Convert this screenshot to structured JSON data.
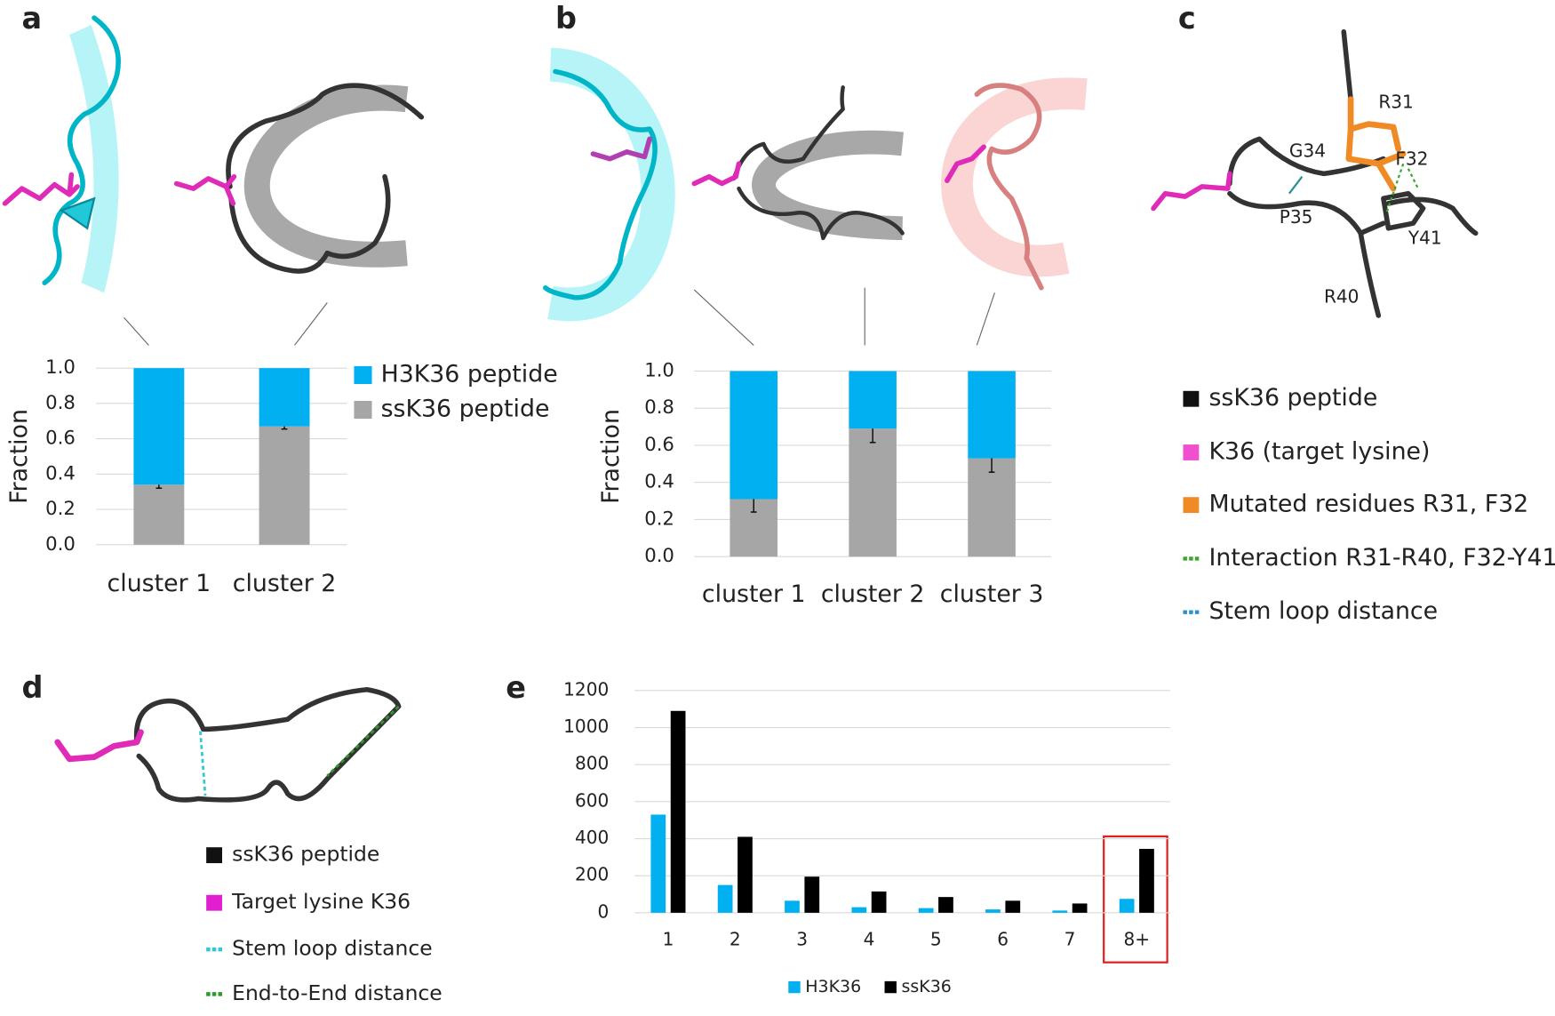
{
  "panel_labels": [
    "a",
    "b",
    "c",
    "d",
    "e"
  ],
  "chart_data": [
    {
      "type": "bar",
      "stacked": true,
      "y_label": "Fraction",
      "categories": [
        "cluster 1",
        "cluster 2"
      ],
      "series": [
        {
          "name": "ssK36 peptide",
          "color": "#a6a6a6",
          "values": [
            0.34,
            0.67
          ],
          "errors": [
            0.02,
            0.015
          ]
        },
        {
          "name": "H3K36 peptide",
          "color": "#00b0f0",
          "values": [
            0.66,
            0.33
          ]
        }
      ],
      "ylim": [
        0,
        1
      ],
      "yticks": [
        {
          "value": 0,
          "label": "0.0"
        },
        {
          "value": 0.2,
          "label": "0.2"
        },
        {
          "value": 0.4,
          "label": "0.4"
        },
        {
          "value": 0.6,
          "label": "0.6"
        },
        {
          "value": 0.8,
          "label": "0.8"
        },
        {
          "value": 1,
          "label": "1.0"
        }
      ],
      "grid": true
    },
    {
      "type": "bar",
      "stacked": true,
      "y_label": "Fraction",
      "categories": [
        "cluster 1",
        "cluster 2",
        "cluster 3"
      ],
      "series": [
        {
          "color": "#a6a6a6",
          "values": [
            0.31,
            0.69,
            0.53
          ],
          "errors": [
            0.07,
            0.075,
            0.075
          ]
        },
        {
          "color": "#00b0f0",
          "values": [
            0.69,
            0.31,
            0.47
          ]
        }
      ],
      "ylim": [
        0,
        1
      ],
      "yticks": [
        {
          "value": 0,
          "label": "0.0"
        },
        {
          "value": 0.2,
          "label": "0.2"
        },
        {
          "value": 0.4,
          "label": "0.4"
        },
        {
          "value": 0.6,
          "label": "0.6"
        },
        {
          "value": 0.8,
          "label": "0.8"
        },
        {
          "value": 1,
          "label": "1.0"
        }
      ],
      "grid": true
    },
    {
      "type": "bar",
      "stacked": false,
      "categories": [
        "1",
        "2",
        "3",
        "4",
        "5",
        "6",
        "7",
        "8+"
      ],
      "series": [
        {
          "name": "H3K36",
          "color": "#00b0f0",
          "values": [
            530,
            150,
            65,
            30,
            25,
            18,
            12,
            75
          ]
        },
        {
          "name": "ssK36",
          "color": "#000000",
          "values": [
            1090,
            410,
            195,
            115,
            85,
            65,
            50,
            345
          ]
        }
      ],
      "ylim": [
        0,
        1200
      ],
      "yticks": [
        0,
        200,
        400,
        600,
        800,
        1000,
        1200
      ],
      "grid": true
    }
  ],
  "structure_labels": [
    "R31",
    "F32",
    "G34",
    "P35",
    "Y41",
    "R40"
  ],
  "legend_c": [
    {
      "name": "ssK36 peptide",
      "color": "#111111",
      "style": "box"
    },
    {
      "name": "K36 (target lysine)",
      "color": "#f050d0",
      "style": "box"
    },
    {
      "name": "Mutated residues R31, F32",
      "color": "#f08a24",
      "style": "box"
    },
    {
      "name": "Interaction R31-R40, F32-Y41",
      "color": "#3aa82a",
      "style": "dash"
    },
    {
      "name": "Stem loop distance",
      "color": "#2a8fd4",
      "style": "dash"
    }
  ],
  "legend_d": [
    {
      "name": "ssK36 peptide",
      "color": "#111111",
      "style": "box"
    },
    {
      "name": "Target lysine K36",
      "color": "#e020d0",
      "style": "box"
    },
    {
      "name": "Stem loop distance",
      "color": "#33c6d6",
      "style": "dash"
    },
    {
      "name": "End-to-End distance",
      "color": "#2a9a2a",
      "style": "dash"
    }
  ]
}
